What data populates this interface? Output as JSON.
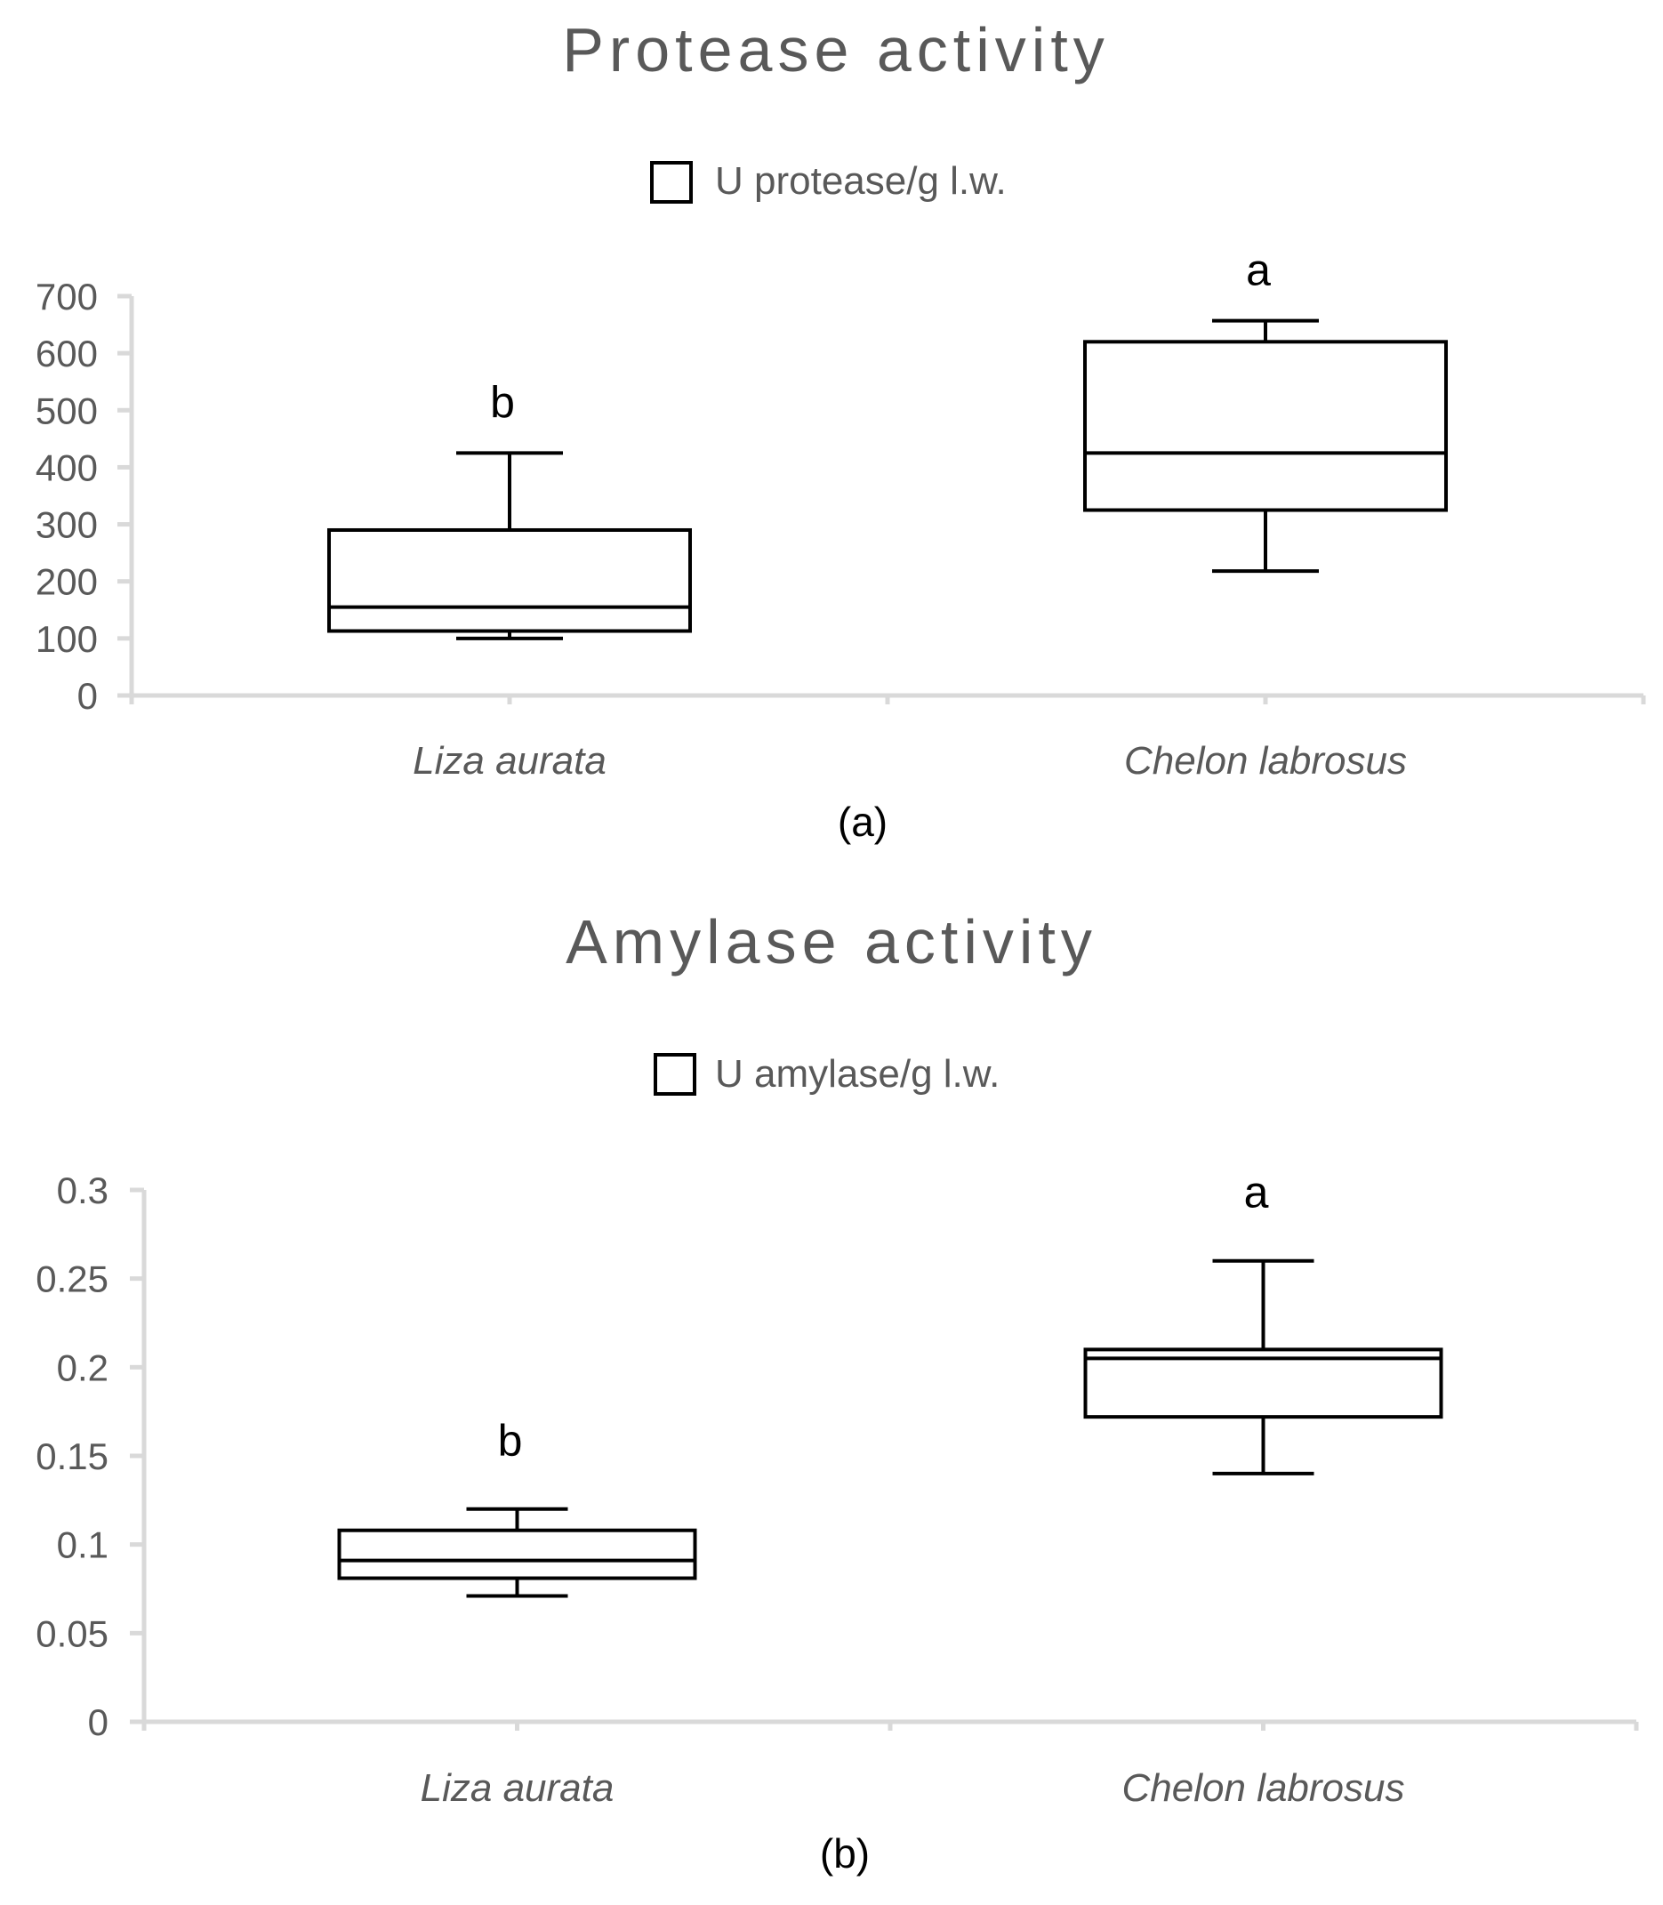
{
  "chart_data": [
    {
      "type": "box",
      "title": "Protease activity",
      "legend": "U protease/g l.w.",
      "legend_position": "top-center",
      "panel_label": "(a)",
      "categories": [
        "Liza aurata",
        "Chelon labrosus"
      ],
      "yticks": [
        "0",
        "100",
        "200",
        "300",
        "400",
        "500",
        "600",
        "700"
      ],
      "ylim": [
        0,
        700
      ],
      "grid": false,
      "boxes": [
        {
          "category": "Liza aurata",
          "min": 100,
          "q1": 113,
          "median": 155,
          "q3": 290,
          "max": 425,
          "significance": "b"
        },
        {
          "category": "Chelon labrosus",
          "min": 218,
          "q1": 325,
          "median": 425,
          "q3": 620,
          "max": 657,
          "significance": "a"
        }
      ]
    },
    {
      "type": "box",
      "title": "Amylase activity",
      "legend": "U amylase/g l.w.",
      "legend_position": "top-center",
      "panel_label": "(b)",
      "categories": [
        "Liza aurata",
        "Chelon labrosus"
      ],
      "yticks": [
        "0",
        "0.05",
        "0.1",
        "0.15",
        "0.2",
        "0.25",
        "0.3"
      ],
      "ylim": [
        0,
        0.3
      ],
      "grid": false,
      "boxes": [
        {
          "category": "Liza aurata",
          "min": 0.071,
          "q1": 0.081,
          "median": 0.091,
          "q3": 0.108,
          "max": 0.12,
          "significance": "b"
        },
        {
          "category": "Chelon labrosus",
          "min": 0.14,
          "q1": 0.172,
          "median": 0.205,
          "q3": 0.21,
          "max": 0.26,
          "significance": "a"
        }
      ]
    }
  ],
  "colors": {
    "axis": "#d9d9d9",
    "box_stroke": "#000000",
    "text_gray": "#595959",
    "background": "#ffffff"
  }
}
